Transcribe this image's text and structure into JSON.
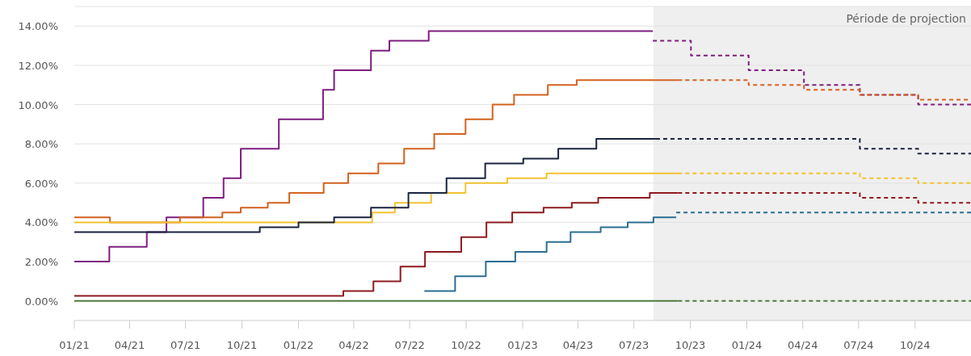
{
  "chart_data": {
    "type": "step",
    "grid": "y",
    "xlim": [
      "2021-01-01",
      "2024-12-31"
    ],
    "ylim": [
      -1,
      15
    ],
    "yticks": [
      {
        "value": 0,
        "label": "0.00%"
      },
      {
        "value": 2,
        "label": "2.00%"
      },
      {
        "value": 4,
        "label": "4.00%"
      },
      {
        "value": 6,
        "label": "6.00%"
      },
      {
        "value": 8,
        "label": "8.00%"
      },
      {
        "value": 10,
        "label": "10.00%"
      },
      {
        "value": 12,
        "label": "12.00%"
      },
      {
        "value": 14,
        "label": "14.00%"
      }
    ],
    "xticks": [
      {
        "value": "2021-01-01",
        "label": "01/21"
      },
      {
        "value": "2021-04-01",
        "label": "04/21"
      },
      {
        "value": "2021-07-01",
        "label": "07/21"
      },
      {
        "value": "2021-10-01",
        "label": "10/21"
      },
      {
        "value": "2022-01-01",
        "label": "01/22"
      },
      {
        "value": "2022-04-01",
        "label": "04/22"
      },
      {
        "value": "2022-07-01",
        "label": "07/22"
      },
      {
        "value": "2022-10-01",
        "label": "10/22"
      },
      {
        "value": "2023-01-01",
        "label": "01/23"
      },
      {
        "value": "2023-04-01",
        "label": "04/23"
      },
      {
        "value": "2023-07-01",
        "label": "07/23"
      },
      {
        "value": "2023-10-01",
        "label": "10/23"
      },
      {
        "value": "2024-01-01",
        "label": "01/24"
      },
      {
        "value": "2024-04-01",
        "label": "04/24"
      },
      {
        "value": "2024-07-01",
        "label": "07/24"
      },
      {
        "value": "2024-10-01",
        "label": "10/24"
      }
    ],
    "bands": [
      {
        "axis": "x",
        "from": "2023-08-02",
        "to": "2024-12-31",
        "label": "Période de projection",
        "color": "#efefef"
      }
    ],
    "series": [
      {
        "color": "#4f7a3f",
        "line_style": "solid",
        "x": [
          "2021-01-01",
          "2023-09-11"
        ],
        "values": [
          0,
          0
        ]
      },
      {
        "color": "#4f7a3f",
        "line_style": "dashed",
        "x": [
          "2023-09-11",
          "2024-12-31"
        ],
        "values": [
          0,
          0
        ]
      },
      {
        "color": "#7e1e80",
        "line_style": "solid",
        "x": [
          "2021-01-01",
          "2021-02-27",
          "2021-04-29",
          "2021-05-31",
          "2021-07-30",
          "2021-09-01",
          "2021-09-29",
          "2021-11-30",
          "2022-02-10",
          "2022-02-28",
          "2022-04-29",
          "2022-05-29",
          "2022-08-01",
          "2023-08-01"
        ],
        "values": [
          2.0,
          2.75,
          3.5,
          4.25,
          5.25,
          6.25,
          7.75,
          9.25,
          10.75,
          11.75,
          12.75,
          13.25,
          13.75,
          13.75
        ]
      },
      {
        "color": "#7e1e80",
        "line_style": "dashed",
        "x": [
          "2023-08-01",
          "2023-10-02",
          "2024-01-04",
          "2024-04-03",
          "2024-07-03",
          "2024-10-06",
          "2024-12-31"
        ],
        "values": [
          13.25,
          12.5,
          11.75,
          11.0,
          10.5,
          10.0,
          10.0
        ]
      },
      {
        "color": "#d4621f",
        "line_style": "solid",
        "x": [
          "2021-01-01",
          "2021-02-28",
          "2021-06-22",
          "2021-08-30",
          "2021-09-29",
          "2021-11-12",
          "2021-12-17",
          "2022-02-11",
          "2022-03-23",
          "2022-05-11",
          "2022-06-22",
          "2022-08-10",
          "2022-09-30",
          "2022-11-13",
          "2022-12-18",
          "2023-02-11",
          "2023-03-30",
          "2023-09-11"
        ],
        "values": [
          4.25,
          4.0,
          4.25,
          4.5,
          4.75,
          5.0,
          5.5,
          6.0,
          6.5,
          7.0,
          7.75,
          8.5,
          9.25,
          10.0,
          10.5,
          11.0,
          11.25,
          11.25
        ]
      },
      {
        "color": "#d4621f",
        "line_style": "dashed",
        "x": [
          "2023-09-11",
          "2024-01-04",
          "2024-04-03",
          "2024-07-03",
          "2024-10-06",
          "2024-12-31"
        ],
        "values": [
          11.25,
          11.0,
          10.75,
          10.5,
          10.25,
          10.25
        ]
      },
      {
        "color": "#f2c230",
        "line_style": "solid",
        "x": [
          "2021-01-01",
          "2022-05-01",
          "2022-06-07",
          "2022-08-05",
          "2022-09-30",
          "2022-12-07",
          "2023-02-09",
          "2023-09-11"
        ],
        "values": [
          4.0,
          4.5,
          5.0,
          5.5,
          6.0,
          6.25,
          6.5,
          6.5
        ]
      },
      {
        "color": "#f2c230",
        "line_style": "dashed",
        "x": [
          "2023-09-11",
          "2024-07-03",
          "2024-10-06",
          "2024-12-31"
        ],
        "values": [
          6.5,
          6.25,
          6.0,
          6.0
        ]
      },
      {
        "color": "#1b2440",
        "line_style": "solid",
        "x": [
          "2021-01-01",
          "2021-10-30",
          "2022-01-01",
          "2022-02-28",
          "2022-04-29",
          "2022-06-29",
          "2022-08-30",
          "2022-11-01",
          "2023-01-02",
          "2023-02-28",
          "2023-05-01",
          "2023-08-06"
        ],
        "values": [
          3.5,
          3.75,
          4.0,
          4.25,
          4.75,
          5.5,
          6.25,
          7.0,
          7.25,
          7.75,
          8.25,
          8.25
        ]
      },
      {
        "color": "#1b2440",
        "line_style": "dashed",
        "x": [
          "2023-08-06",
          "2024-07-03",
          "2024-10-06",
          "2024-12-31"
        ],
        "values": [
          8.25,
          7.75,
          7.5,
          7.5
        ]
      },
      {
        "color": "#8e1b1f",
        "line_style": "solid",
        "x": [
          "2021-01-01",
          "2022-03-15",
          "2022-05-03",
          "2022-06-16",
          "2022-07-26",
          "2022-09-23",
          "2022-11-03",
          "2022-12-15",
          "2023-02-04",
          "2023-03-22",
          "2023-05-04",
          "2023-07-27",
          "2023-09-11"
        ],
        "values": [
          0.25,
          0.5,
          1.0,
          1.75,
          2.5,
          3.25,
          4.0,
          4.5,
          4.75,
          5.0,
          5.25,
          5.5,
          5.5
        ]
      },
      {
        "color": "#8e1b1f",
        "line_style": "dashed",
        "x": [
          "2023-09-11",
          "2024-07-03",
          "2024-10-06",
          "2024-12-31"
        ],
        "values": [
          5.5,
          5.25,
          5.0,
          5.0
        ]
      },
      {
        "color": "#2b6e92",
        "line_style": "solid",
        "x": [
          "2022-07-25",
          "2022-09-13",
          "2022-11-02",
          "2022-12-20",
          "2023-02-09",
          "2023-03-20",
          "2023-05-08",
          "2023-06-21",
          "2023-08-02",
          "2023-09-08"
        ],
        "values": [
          0.5,
          1.25,
          2.0,
          2.5,
          3.0,
          3.5,
          3.75,
          4.0,
          4.25,
          4.25
        ]
      },
      {
        "color": "#2b6e92",
        "line_style": "dashed",
        "x": [
          "2023-09-08",
          "2024-12-31"
        ],
        "values": [
          4.5,
          4.5
        ]
      }
    ]
  }
}
